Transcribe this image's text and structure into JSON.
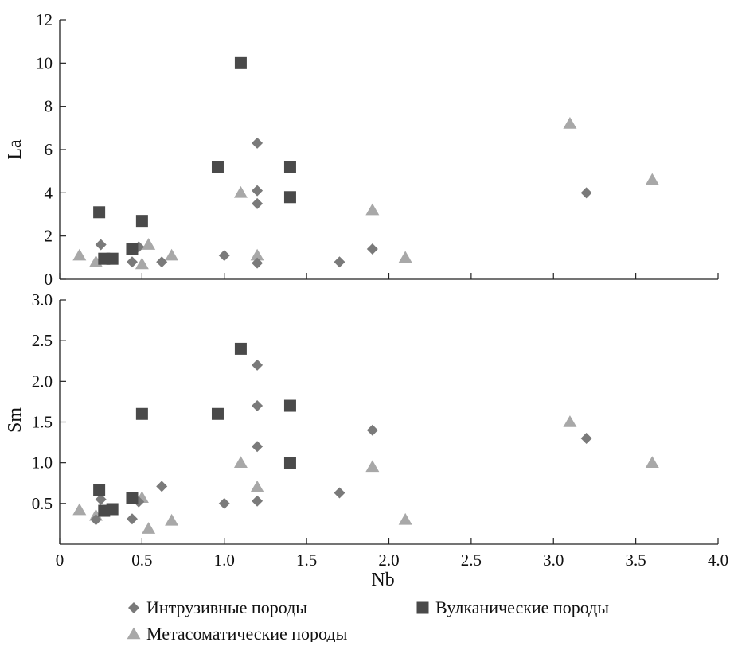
{
  "chart_data": [
    {
      "type": "scatter",
      "ylabel": "La",
      "xlim": [
        0,
        4.0
      ],
      "ylim": [
        0,
        12
      ],
      "yticks": [
        0,
        2,
        4,
        6,
        8,
        10,
        12
      ],
      "ytick_labels": [
        "0",
        "2",
        "4",
        "6",
        "8",
        "10",
        "12"
      ],
      "grid": false,
      "series": [
        {
          "name": "Интрузивные породы",
          "marker": "diamond",
          "color": "#7a7a7a",
          "points": [
            [
              0.25,
              1.6
            ],
            [
              0.44,
              0.8
            ],
            [
              0.48,
              1.5
            ],
            [
              0.62,
              0.8
            ],
            [
              1.0,
              1.1
            ],
            [
              1.2,
              6.3
            ],
            [
              1.2,
              4.1
            ],
            [
              1.2,
              3.5
            ],
            [
              1.2,
              0.75
            ],
            [
              1.7,
              0.8
            ],
            [
              1.9,
              1.4
            ],
            [
              3.2,
              4.0
            ]
          ]
        },
        {
          "name": "Вулканические породы",
          "marker": "square",
          "color": "#4a4a4a",
          "points": [
            [
              0.24,
              3.1
            ],
            [
              0.27,
              0.95
            ],
            [
              0.32,
              0.95
            ],
            [
              0.44,
              1.4
            ],
            [
              0.5,
              2.7
            ],
            [
              0.96,
              5.2
            ],
            [
              1.1,
              10.0
            ],
            [
              1.4,
              5.2
            ],
            [
              1.4,
              3.8
            ]
          ]
        },
        {
          "name": "Метасоматические породы",
          "marker": "triangle",
          "color": "#a8a8a8",
          "points": [
            [
              0.12,
              1.1
            ],
            [
              0.22,
              0.8
            ],
            [
              0.5,
              0.7
            ],
            [
              0.54,
              1.6
            ],
            [
              0.68,
              1.1
            ],
            [
              1.1,
              4.0
            ],
            [
              1.2,
              1.1
            ],
            [
              1.9,
              3.2
            ],
            [
              2.1,
              1.0
            ],
            [
              3.1,
              7.2
            ],
            [
              3.6,
              4.6
            ]
          ]
        }
      ]
    },
    {
      "type": "scatter",
      "xlabel": "Nb",
      "ylabel": "Sm",
      "xlim": [
        0,
        4.0
      ],
      "ylim": [
        0,
        3.0
      ],
      "xticks": [
        0,
        0.5,
        1.0,
        1.5,
        2.0,
        2.5,
        3.0,
        3.5,
        4.0
      ],
      "xtick_labels": [
        "0",
        "0.5",
        "1.0",
        "1.5",
        "2.0",
        "2.5",
        "3.0",
        "3.5",
        "4.0"
      ],
      "yticks": [
        0.5,
        1.0,
        1.5,
        2.0,
        2.5,
        3.0
      ],
      "ytick_labels": [
        "0.5",
        "1.0",
        "1.5",
        "2.0",
        "2.5",
        "3.0"
      ],
      "grid": false,
      "legend_position": "bottom",
      "series": [
        {
          "name": "Интрузивные породы",
          "marker": "diamond",
          "color": "#7a7a7a",
          "points": [
            [
              0.22,
              0.3
            ],
            [
              0.25,
              0.55
            ],
            [
              0.44,
              0.31
            ],
            [
              0.48,
              0.52
            ],
            [
              0.62,
              0.71
            ],
            [
              1.0,
              0.5
            ],
            [
              1.2,
              2.2
            ],
            [
              1.2,
              1.7
            ],
            [
              1.2,
              1.2
            ],
            [
              1.2,
              0.53
            ],
            [
              1.7,
              0.63
            ],
            [
              1.9,
              1.4
            ],
            [
              3.2,
              1.3
            ]
          ]
        },
        {
          "name": "Вулканические породы",
          "marker": "square",
          "color": "#4a4a4a",
          "points": [
            [
              0.24,
              0.66
            ],
            [
              0.27,
              0.41
            ],
            [
              0.32,
              0.43
            ],
            [
              0.44,
              0.57
            ],
            [
              0.5,
              1.6
            ],
            [
              0.96,
              1.6
            ],
            [
              1.1,
              2.4
            ],
            [
              1.4,
              1.7
            ],
            [
              1.4,
              1.0
            ]
          ]
        },
        {
          "name": "Метасоматические породы",
          "marker": "triangle",
          "color": "#a8a8a8",
          "points": [
            [
              0.12,
              0.42
            ],
            [
              0.22,
              0.35
            ],
            [
              0.5,
              0.57
            ],
            [
              0.54,
              0.19
            ],
            [
              0.68,
              0.29
            ],
            [
              1.1,
              1.0
            ],
            [
              1.2,
              0.7
            ],
            [
              1.9,
              0.95
            ],
            [
              2.1,
              0.3
            ],
            [
              3.1,
              1.5
            ],
            [
              3.6,
              1.0
            ]
          ]
        }
      ]
    }
  ],
  "legend": [
    {
      "label": "Интрузивные породы",
      "marker": "diamond",
      "color": "#7a7a7a"
    },
    {
      "label": "Вулканические породы",
      "marker": "square",
      "color": "#4a4a4a"
    },
    {
      "label": "Метасоматические породы",
      "marker": "triangle",
      "color": "#a8a8a8"
    }
  ]
}
